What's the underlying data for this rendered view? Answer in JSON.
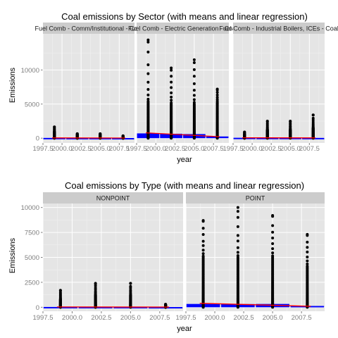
{
  "chart_data": [
    {
      "type": "scatter",
      "title": "Coal emissions by Sector (with means and linear regression)",
      "xlabel": "year",
      "ylabel": "Emissions",
      "xlim": [
        1997.5,
        2009.5
      ],
      "ylim": [
        -700,
        15300
      ],
      "x_ticks": [
        1997.5,
        2000.0,
        2002.5,
        2005.0,
        2007.5
      ],
      "x_tick_labels": [
        "1997.5",
        "2000.0",
        "2002.5",
        "2005.0",
        "2007.5"
      ],
      "y_ticks": [
        0,
        5000,
        10000
      ],
      "y_tick_labels": [
        "0",
        "5000",
        "10000"
      ],
      "colors": {
        "background": "#ffffff",
        "panel": "#e5e5e5",
        "grid": "#ffffff",
        "strip": "#cccccc",
        "points": "#000000",
        "mean": "#0000ff",
        "regression": "#ff0000"
      },
      "grid": true,
      "panels": [
        {
          "name": "Fuel Comb - Comm/Institutional - Coal",
          "points": [
            {
              "x": 1999,
              "max": 1650,
              "dense_to": 900
            },
            {
              "x": 2002,
              "max": 650,
              "dense_to": 400
            },
            {
              "x": 2005,
              "max": 650,
              "dense_to": 400
            },
            {
              "x": 2008,
              "max": 350,
              "dense_to": 200
            }
          ],
          "means": [
            {
              "x": 1999,
              "y": 40
            },
            {
              "x": 2002,
              "y": 30
            },
            {
              "x": 2005,
              "y": 30
            },
            {
              "x": 2008,
              "y": 20
            }
          ],
          "regression": {
            "x": [
              1999,
              2008
            ],
            "y": [
              40,
              20
            ]
          }
        },
        {
          "name": "Fuel Comb - Electric Generation - Coal",
          "points": [
            {
              "x": 1999,
              "max": 14400,
              "dense_to": 5400
            },
            {
              "x": 2002,
              "max": 10300,
              "dense_to": 5000
            },
            {
              "x": 2005,
              "max": 11500,
              "dense_to": 5000
            },
            {
              "x": 2008,
              "max": 7200,
              "dense_to": 5000
            }
          ],
          "means": [
            {
              "x": 1999,
              "y": 700
            },
            {
              "x": 2002,
              "y": 650
            },
            {
              "x": 2005,
              "y": 600
            },
            {
              "x": 2008,
              "y": 250
            }
          ],
          "regression": {
            "x": [
              1999,
              2008
            ],
            "y": [
              780,
              220
            ]
          }
        },
        {
          "name": "Fuel Comb - Industrial Boilers, ICEs - Coal",
          "points": [
            {
              "x": 1999,
              "max": 900,
              "dense_to": 500
            },
            {
              "x": 2002,
              "max": 2500,
              "dense_to": 1200
            },
            {
              "x": 2005,
              "max": 2500,
              "dense_to": 1200
            },
            {
              "x": 2008,
              "max": 3400,
              "dense_to": 1500
            }
          ],
          "means": [
            {
              "x": 1999,
              "y": 60
            },
            {
              "x": 2002,
              "y": 50
            },
            {
              "x": 2005,
              "y": 50
            },
            {
              "x": 2008,
              "y": 40
            }
          ],
          "regression": {
            "x": [
              1999,
              2008
            ],
            "y": [
              60,
              40
            ]
          }
        }
      ]
    },
    {
      "type": "scatter",
      "title": "Coal emissions by Type (with means and linear regression)",
      "xlabel": "year",
      "ylabel": "Emissions",
      "xlim": [
        1997.5,
        2009.5
      ],
      "ylim": [
        -400,
        10400
      ],
      "x_ticks": [
        1997.5,
        2000.0,
        2002.5,
        2005.0,
        2007.5
      ],
      "x_tick_labels": [
        "1997.5",
        "2000.0",
        "2002.5",
        "2005.0",
        "2007.5"
      ],
      "y_ticks": [
        0,
        2500,
        5000,
        7500,
        10000
      ],
      "y_tick_labels": [
        "0",
        "2500",
        "5000",
        "7500",
        "10000"
      ],
      "colors": {
        "background": "#ffffff",
        "panel": "#e5e5e5",
        "grid": "#ffffff",
        "strip": "#cccccc",
        "points": "#000000",
        "mean": "#0000ff",
        "regression": "#ff0000"
      },
      "grid": true,
      "panels": [
        {
          "name": "NONPOINT",
          "points": [
            {
              "x": 1999,
              "max": 1700,
              "dense_to": 800
            },
            {
              "x": 2002,
              "max": 2400,
              "dense_to": 1200
            },
            {
              "x": 2005,
              "max": 2400,
              "dense_to": 1200
            },
            {
              "x": 2008,
              "max": 300,
              "dense_to": 200
            }
          ],
          "means": [
            {
              "x": 1999,
              "y": 30
            },
            {
              "x": 2002,
              "y": 30
            },
            {
              "x": 2005,
              "y": 30
            },
            {
              "x": 2008,
              "y": 20
            }
          ],
          "regression": {
            "x": [
              1999,
              2008
            ],
            "y": [
              30,
              20
            ]
          }
        },
        {
          "name": "POINT",
          "points": [
            {
              "x": 1999,
              "max": 8700,
              "dense_to": 5000
            },
            {
              "x": 2002,
              "max": 10000,
              "dense_to": 5000
            },
            {
              "x": 2005,
              "max": 9200,
              "dense_to": 5000
            },
            {
              "x": 2008,
              "max": 7300,
              "dense_to": 4000
            }
          ],
          "means": [
            {
              "x": 1999,
              "y": 330
            },
            {
              "x": 2002,
              "y": 320
            },
            {
              "x": 2005,
              "y": 330
            },
            {
              "x": 2008,
              "y": 130
            }
          ],
          "regression": {
            "x": [
              1999,
              2008
            ],
            "y": [
              400,
              100
            ]
          }
        }
      ]
    }
  ]
}
